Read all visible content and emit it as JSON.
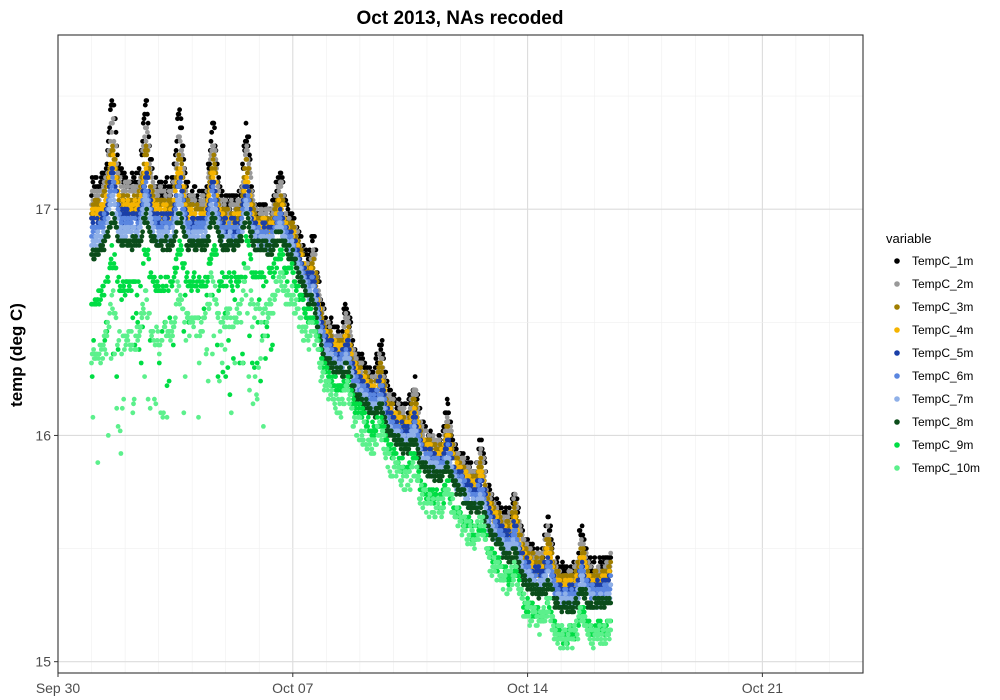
{
  "chart_data": {
    "type": "scatter",
    "title": "Oct 2013, NAs recoded",
    "xlabel": "",
    "ylabel": "temp (deg C)",
    "x_axis": {
      "type": "date",
      "range": [
        "2013-09-30",
        "2013-10-24"
      ],
      "ticks": [
        {
          "date": "2013-09-30",
          "label": "Sep 30"
        },
        {
          "date": "2013-10-07",
          "label": "Oct 07"
        },
        {
          "date": "2013-10-14",
          "label": "Oct 14"
        },
        {
          "date": "2013-10-21",
          "label": "Oct 21"
        }
      ],
      "data_range": [
        "2013-10-01",
        "2013-10-16 12:00"
      ]
    },
    "y_axis": {
      "range": [
        14.95,
        17.77
      ],
      "ticks": [
        15,
        16,
        17
      ]
    },
    "grid": true,
    "legend": {
      "title": "variable",
      "position": "right"
    },
    "series": [
      {
        "name": "TempC_1m",
        "color": "#000000",
        "trend": [
          [
            0.0,
            17.1
          ],
          [
            0.5,
            17.15
          ],
          [
            5.0,
            17.0
          ],
          [
            6.0,
            16.95
          ],
          [
            7.0,
            16.5
          ],
          [
            9.0,
            16.15
          ],
          [
            10.0,
            16.0
          ],
          [
            11.0,
            15.9
          ],
          [
            13.0,
            15.5
          ],
          [
            14.0,
            15.4
          ],
          [
            15.5,
            15.42
          ]
        ],
        "noise": 0.14,
        "max": 17.62
      },
      {
        "name": "TempC_2m",
        "color": "#999999",
        "trend": [
          [
            0.0,
            17.05
          ],
          [
            0.5,
            17.1
          ],
          [
            5.0,
            16.98
          ],
          [
            6.0,
            16.93
          ],
          [
            7.0,
            16.47
          ],
          [
            9.0,
            16.12
          ],
          [
            10.0,
            15.98
          ],
          [
            11.0,
            15.88
          ],
          [
            13.0,
            15.48
          ],
          [
            14.0,
            15.37
          ],
          [
            15.5,
            15.4
          ]
        ],
        "noise": 0.12,
        "max": 17.5
      },
      {
        "name": "TempC_3m",
        "color": "#a07e00",
        "trend": [
          [
            0.0,
            17.0
          ],
          [
            0.5,
            17.05
          ],
          [
            5.0,
            16.95
          ],
          [
            6.0,
            16.91
          ],
          [
            7.0,
            16.45
          ],
          [
            9.0,
            16.1
          ],
          [
            10.0,
            15.96
          ],
          [
            11.0,
            15.86
          ],
          [
            13.0,
            15.46
          ],
          [
            14.0,
            15.35
          ],
          [
            15.5,
            15.38
          ]
        ],
        "noise": 0.11,
        "max": 17.45
      },
      {
        "name": "TempC_4m",
        "color": "#f5b400",
        "trend": [
          [
            0.0,
            16.97
          ],
          [
            0.5,
            17.02
          ],
          [
            5.0,
            16.93
          ],
          [
            6.0,
            16.89
          ],
          [
            7.0,
            16.43
          ],
          [
            9.0,
            16.08
          ],
          [
            10.0,
            15.94
          ],
          [
            11.0,
            15.84
          ],
          [
            13.0,
            15.44
          ],
          [
            14.0,
            15.33
          ],
          [
            15.5,
            15.36
          ]
        ],
        "noise": 0.1,
        "max": 17.4
      },
      {
        "name": "TempC_5m",
        "color": "#1a3fa8",
        "trend": [
          [
            0.0,
            16.93
          ],
          [
            0.5,
            16.98
          ],
          [
            5.0,
            16.91
          ],
          [
            6.0,
            16.87
          ],
          [
            7.0,
            16.41
          ],
          [
            9.0,
            16.06
          ],
          [
            10.0,
            15.92
          ],
          [
            11.0,
            15.82
          ],
          [
            13.0,
            15.42
          ],
          [
            14.0,
            15.31
          ],
          [
            15.5,
            15.34
          ]
        ],
        "noise": 0.1,
        "max": 17.3
      },
      {
        "name": "TempC_6m",
        "color": "#5a86e0",
        "trend": [
          [
            0.0,
            16.9
          ],
          [
            0.5,
            16.95
          ],
          [
            5.0,
            16.89
          ],
          [
            6.0,
            16.85
          ],
          [
            7.0,
            16.39
          ],
          [
            9.0,
            16.04
          ],
          [
            10.0,
            15.9
          ],
          [
            11.0,
            15.8
          ],
          [
            13.0,
            15.4
          ],
          [
            14.0,
            15.29
          ],
          [
            15.5,
            15.32
          ]
        ],
        "noise": 0.1,
        "max": 17.25
      },
      {
        "name": "TempC_7m",
        "color": "#8fb0e8",
        "trend": [
          [
            0.0,
            16.85
          ],
          [
            0.5,
            16.9
          ],
          [
            5.0,
            16.86
          ],
          [
            6.0,
            16.82
          ],
          [
            7.0,
            16.36
          ],
          [
            9.0,
            16.01
          ],
          [
            10.0,
            15.87
          ],
          [
            11.0,
            15.77
          ],
          [
            13.0,
            15.37
          ],
          [
            14.0,
            15.26
          ],
          [
            15.5,
            15.28
          ]
        ],
        "noise": 0.1,
        "max": 17.2
      },
      {
        "name": "TempC_8m",
        "color": "#0b4d1a",
        "trend": [
          [
            0.0,
            16.8
          ],
          [
            0.5,
            16.85
          ],
          [
            5.0,
            16.84
          ],
          [
            6.0,
            16.8
          ],
          [
            7.0,
            16.34
          ],
          [
            9.0,
            15.99
          ],
          [
            10.0,
            15.85
          ],
          [
            11.0,
            15.75
          ],
          [
            13.0,
            15.34
          ],
          [
            14.0,
            15.24
          ],
          [
            15.5,
            15.26
          ]
        ],
        "noise": 0.09,
        "max": 17.1
      },
      {
        "name": "TempC_9m",
        "color": "#00dd44",
        "trend": [
          [
            0.0,
            16.6
          ],
          [
            0.5,
            16.65
          ],
          [
            5.0,
            16.7
          ],
          [
            6.0,
            16.72
          ],
          [
            7.0,
            16.28
          ],
          [
            9.0,
            15.92
          ],
          [
            10.0,
            15.75
          ],
          [
            11.0,
            15.65
          ],
          [
            13.0,
            15.25
          ],
          [
            14.0,
            15.12
          ],
          [
            15.5,
            15.15
          ]
        ],
        "noise": 0.12,
        "max": 16.95
      },
      {
        "name": "TempC_10m",
        "color": "#5cf08c",
        "trend": [
          [
            0.0,
            16.35
          ],
          [
            0.5,
            16.4
          ],
          [
            5.0,
            16.55
          ],
          [
            6.0,
            16.6
          ],
          [
            7.0,
            16.2
          ],
          [
            9.0,
            15.85
          ],
          [
            10.0,
            15.7
          ],
          [
            11.0,
            15.62
          ],
          [
            13.0,
            15.22
          ],
          [
            14.0,
            15.1
          ],
          [
            15.5,
            15.12
          ]
        ],
        "noise": 0.18,
        "max": 16.85
      }
    ]
  }
}
